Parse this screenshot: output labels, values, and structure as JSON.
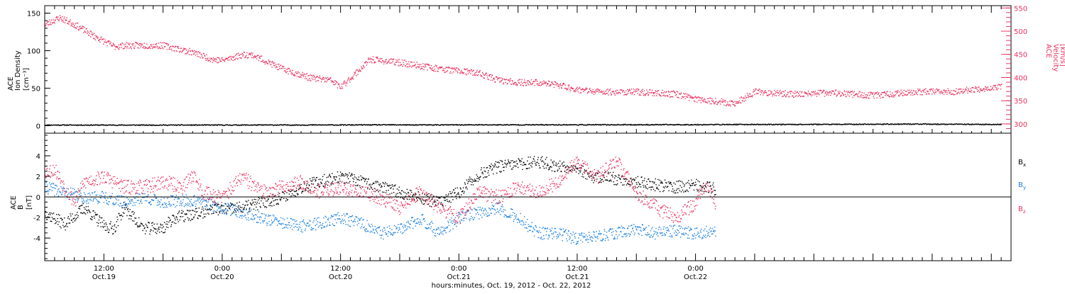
{
  "colors": {
    "black": "#000000",
    "pink": "#e8325f",
    "blue": "#1a7fdc"
  },
  "chart_data": [
    {
      "type": "scatter",
      "panel": "top",
      "ylabel": {
        "lines": [
          "ACE",
          "Ion Density"
        ],
        "unit": "[cm⁻³]"
      },
      "y2label": {
        "lines": [
          "ACE",
          "Velocity"
        ],
        "unit": "[km/s]"
      },
      "x_hours_range": [
        0,
        98
      ],
      "ylim": [
        -10,
        160
      ],
      "yticks": [
        0,
        50,
        100,
        150
      ],
      "y2lim": [
        280,
        555
      ],
      "y2ticks": [
        300,
        350,
        400,
        450,
        500,
        550
      ],
      "series": [
        {
          "key": "density",
          "axis": "left",
          "color": "#000000",
          "x_hours": [
            0,
            10,
            20,
            30,
            36,
            37,
            40,
            50,
            60,
            66,
            70,
            80,
            88,
            90,
            92,
            97
          ],
          "values": [
            1.5,
            1.4,
            1.5,
            1.6,
            1.8,
            1.6,
            1.7,
            1.8,
            1.9,
            2.0,
            2.2,
            2.4,
            2.8,
            2.6,
            2.5,
            2.3
          ]
        },
        {
          "key": "velocity",
          "axis": "right",
          "color": "#e8325f",
          "x_hours": [
            0,
            1,
            1.5,
            3,
            5,
            7,
            8,
            12,
            15,
            17,
            18,
            20,
            21,
            24,
            27,
            29,
            30,
            33,
            36,
            40,
            44,
            46,
            48,
            50,
            52,
            54,
            56,
            60,
            64,
            66,
            70,
            72,
            76,
            80,
            84,
            88,
            92,
            94,
            97
          ],
          "values": [
            515,
            525,
            530,
            515,
            490,
            468,
            470,
            470,
            455,
            440,
            438,
            450,
            450,
            420,
            400,
            395,
            380,
            440,
            433,
            420,
            410,
            395,
            390,
            390,
            385,
            375,
            370,
            370,
            365,
            355,
            345,
            370,
            365,
            368,
            362,
            370,
            370,
            375,
            380
          ]
        }
      ]
    },
    {
      "type": "scatter",
      "panel": "bottom",
      "ylabel": {
        "lines": [
          "ACE",
          "B"
        ],
        "unit": "[nT]"
      },
      "x_hours_range": [
        0,
        98
      ],
      "ylim": [
        -6.2,
        6.2
      ],
      "yticks": [
        -4,
        -2,
        0,
        2,
        4
      ],
      "zero_line": true,
      "xticks": [
        {
          "hour": 6,
          "time": "12:00",
          "date": "Oct.19"
        },
        {
          "hour": 18,
          "time": "0:00",
          "date": "Oct.20"
        },
        {
          "hour": 30,
          "time": "12:00",
          "date": "Oct.20"
        },
        {
          "hour": 42,
          "time": "0:00",
          "date": "Oct.21"
        },
        {
          "hour": 54,
          "time": "12:00",
          "date": "Oct.21"
        },
        {
          "hour": 66,
          "time": "0:00",
          "date": "Oct.22"
        }
      ],
      "xlabel": "hours:minutes, Oct. 19, 2012 - Oct. 22, 2012",
      "series": [
        {
          "key": "bx",
          "name": "B",
          "subscript": "x",
          "color": "#000000",
          "x_hours": [
            0,
            2,
            4,
            6,
            7,
            8,
            10,
            12,
            13,
            16,
            17,
            18,
            20,
            22,
            24,
            26,
            28,
            30,
            32,
            34,
            36,
            38,
            40,
            42,
            44,
            46,
            48,
            50,
            52,
            54,
            55,
            56,
            58,
            60,
            62,
            64,
            66,
            68
          ],
          "values": [
            -1.5,
            -2.6,
            -1.0,
            -2.8,
            -3.0,
            -1.0,
            -3.0,
            -3.0,
            -2.0,
            -1.5,
            -1.0,
            -1.2,
            -1.0,
            -0.5,
            0.0,
            1.0,
            1.6,
            2.0,
            1.5,
            1.0,
            0.5,
            0.0,
            -0.5,
            0.5,
            2.2,
            3.0,
            3.2,
            3.5,
            3.0,
            3.0,
            2.0,
            2.0,
            1.8,
            1.5,
            1.2,
            1.0,
            1.2,
            0.8
          ]
        },
        {
          "key": "by",
          "name": "B",
          "subscript": "y",
          "color": "#1a7fdc",
          "x_hours": [
            0,
            2,
            4,
            6,
            8,
            10,
            12,
            14,
            16,
            18,
            20,
            22,
            24,
            26,
            28,
            30,
            32,
            34,
            36,
            38,
            40,
            42,
            44,
            46,
            48,
            50,
            52,
            54,
            56,
            58,
            60,
            62,
            64,
            66,
            68
          ],
          "values": [
            1.0,
            0.5,
            0.0,
            0.0,
            -0.5,
            0.0,
            -0.5,
            -0.3,
            -0.5,
            -1.0,
            -1.5,
            -2.0,
            -2.5,
            -2.8,
            -2.5,
            -2.0,
            -2.5,
            -3.5,
            -3.2,
            -2.0,
            -3.5,
            -2.0,
            -1.5,
            -1.0,
            -2.0,
            -3.5,
            -3.5,
            -4.0,
            -3.8,
            -3.5,
            -3.0,
            -3.5,
            -3.2,
            -3.5,
            -3.3
          ]
        },
        {
          "key": "bz",
          "name": "B",
          "subscript": "z",
          "color": "#e8325f",
          "x_hours": [
            0,
            1,
            2,
            3,
            4,
            6,
            8,
            10,
            12,
            14,
            15,
            16,
            18,
            20,
            22,
            24,
            26,
            28,
            30,
            32,
            34,
            36,
            38,
            40,
            42,
            44,
            46,
            48,
            50,
            52,
            54,
            56,
            58,
            60,
            62,
            64,
            66,
            67,
            68
          ],
          "values": [
            2.5,
            2.7,
            1.0,
            -0.5,
            1.5,
            2.0,
            1.0,
            1.0,
            1.5,
            1.0,
            2.3,
            0.5,
            0.0,
            2.0,
            0.5,
            1.0,
            1.5,
            0.5,
            1.0,
            0.5,
            0.0,
            -1.0,
            0.5,
            -1.0,
            -2.0,
            0.5,
            0.0,
            1.0,
            0.5,
            1.5,
            3.5,
            2.0,
            3.5,
            0.5,
            -1.0,
            -2.0,
            -0.5,
            1.0,
            -0.5
          ]
        }
      ]
    }
  ]
}
